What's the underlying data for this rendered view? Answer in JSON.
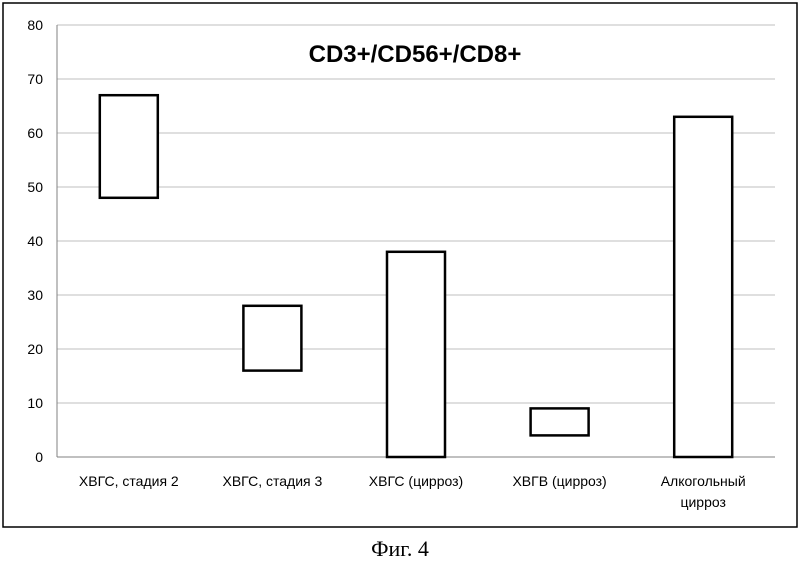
{
  "chart_data": {
    "type": "bar",
    "title": "CD3+/CD56+/CD8+",
    "categories": [
      [
        "ХВГС, стадия 2"
      ],
      [
        "ХВГС, стадия 3"
      ],
      [
        "ХВГС (цирроз)"
      ],
      [
        "ХВГВ (цирроз)"
      ],
      [
        "Алкогольный",
        "цирроз"
      ]
    ],
    "ranges": [
      [
        48,
        67
      ],
      [
        16,
        28
      ],
      [
        0,
        38
      ],
      [
        4,
        9
      ],
      [
        0,
        63
      ]
    ],
    "ylim": [
      0,
      80
    ],
    "yticks": [
      0,
      10,
      20,
      30,
      40,
      50,
      60,
      70,
      80
    ],
    "grid": true,
    "bar_fill": "#ffffff",
    "bar_stroke": "#000000",
    "grid_color": "#bfbfbf"
  },
  "caption": "Фиг. 4"
}
